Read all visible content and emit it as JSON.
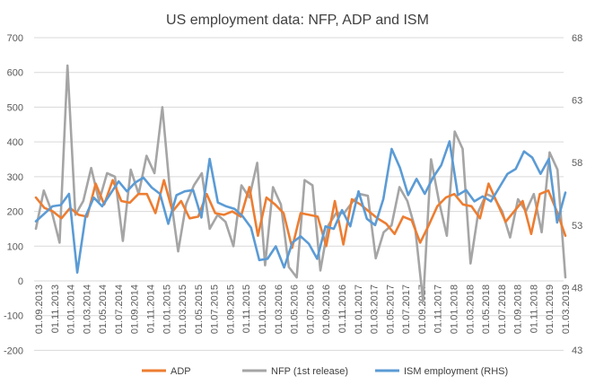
{
  "chart_data": {
    "type": "line",
    "title": "US employment data: NFP, ADP and ISM",
    "xlabel": "",
    "ylabel": "",
    "ylim": [
      -200,
      700
    ],
    "y2lim": [
      43,
      68
    ],
    "yticks": [
      -200,
      -100,
      0,
      100,
      200,
      300,
      400,
      500,
      600,
      700
    ],
    "y2ticks": [
      43,
      48,
      53,
      58,
      63,
      68
    ],
    "grid": true,
    "legend_position": "bottom",
    "x_tick_labels": [
      "01.09.2013",
      "01.11.2013",
      "01.01.2014",
      "01.03.2014",
      "01.05.2014",
      "01.07.2014",
      "01.09.2014",
      "01.11.2014",
      "01.01.2015",
      "01.03.2015",
      "01.05.2015",
      "01.07.2015",
      "01.09.2015",
      "01.11.2015",
      "01.01.2016",
      "01.03.2016",
      "01.05.2016",
      "01.07.2016",
      "01.09.2016",
      "01.11.2016",
      "01.01.2017",
      "01.03.2017",
      "01.05.2017",
      "01.07.2017",
      "01.09.2017",
      "01.11.2017",
      "01.01.2018",
      "01.03.2018",
      "01.05.2018",
      "01.07.2018",
      "01.09.2018",
      "01.11.2018",
      "01.01.2019",
      "01.03.2019"
    ],
    "series": [
      {
        "name": "ADP",
        "axis": "left",
        "color": "#ED7D31",
        "values": [
          240,
          210,
          200,
          180,
          210,
          190,
          185,
          280,
          220,
          290,
          230,
          225,
          250,
          250,
          195,
          290,
          200,
          230,
          180,
          185,
          250,
          195,
          190,
          200,
          185,
          270,
          130,
          240,
          220,
          195,
          95,
          195,
          190,
          185,
          100,
          230,
          105,
          235,
          220,
          200,
          180,
          165,
          135,
          185,
          175,
          110,
          160,
          215,
          240,
          250,
          220,
          215,
          180,
          280,
          225,
          170,
          200,
          230,
          135,
          250,
          260,
          200,
          130
        ]
      },
      {
        "name": "NFP (1st release)",
        "axis": "left",
        "color": "#A5A5A5",
        "values": [
          150,
          260,
          200,
          110,
          620,
          190,
          230,
          325,
          230,
          310,
          300,
          115,
          320,
          250,
          360,
          310,
          500,
          250,
          85,
          220,
          275,
          310,
          150,
          190,
          170,
          100,
          275,
          240,
          340,
          45,
          270,
          220,
          40,
          10,
          290,
          275,
          30,
          160,
          195,
          195,
          225,
          250,
          245,
          65,
          140,
          160,
          270,
          230,
          150,
          -60,
          350,
          230,
          130,
          430,
          380,
          50,
          200,
          250,
          240,
          200,
          125,
          235,
          200,
          250,
          140,
          370,
          320,
          10
        ]
      },
      {
        "name": "ISM employment (RHS)",
        "axis": "right",
        "color": "#5B9BD5",
        "values": [
          53.3,
          53.9,
          54.5,
          54.6,
          55.5,
          49.2,
          53.7,
          55.2,
          54.5,
          55.5,
          56.5,
          55.7,
          56.4,
          56.8,
          56.0,
          55.5,
          53.1,
          55.4,
          55.7,
          55.8,
          53.6,
          58.3,
          54.8,
          54.5,
          54.3,
          53.7,
          52.8,
          50.2,
          50.3,
          51.3,
          49.6,
          51.6,
          52.1,
          51.5,
          50.3,
          52.9,
          52.7,
          54.2,
          52.9,
          55.7,
          53.5,
          53.0,
          55.1,
          59.1,
          57.6,
          55.4,
          56.7,
          55.5,
          56.8,
          57.8,
          59.7,
          55.4,
          55.8,
          54.9,
          55.3,
          54.9,
          56.0,
          57.1,
          57.5,
          58.9,
          58.4,
          57.1,
          58.3,
          53.2,
          55.6
        ]
      }
    ]
  }
}
